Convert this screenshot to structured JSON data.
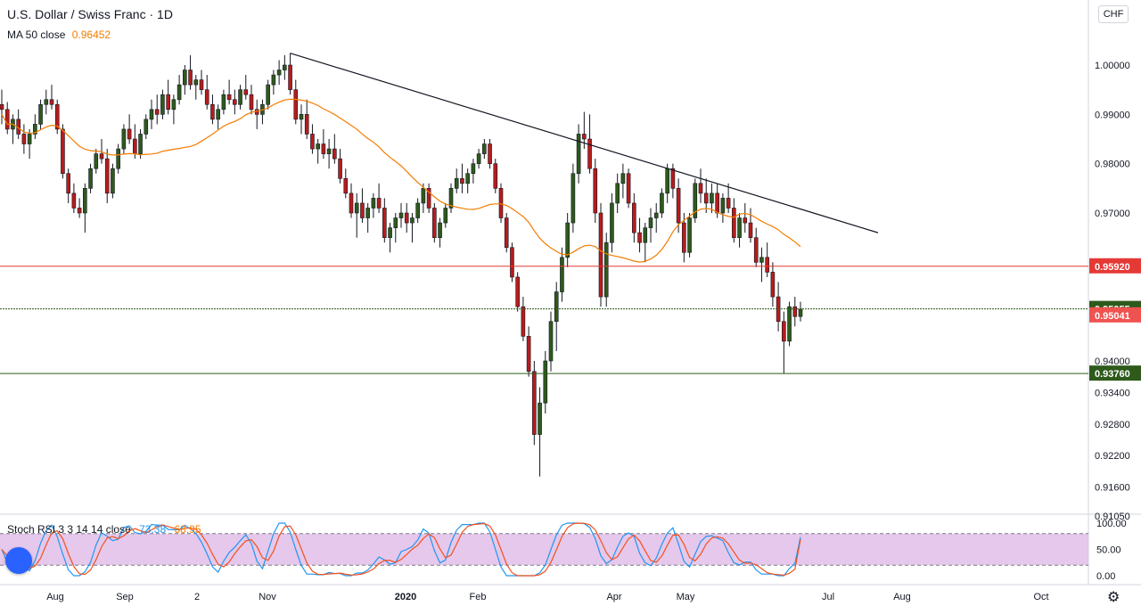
{
  "title": "U.S. Dollar / Swiss Franc · 1D",
  "indicator": {
    "label": "MA 50 close",
    "value": "0.96452"
  },
  "currency": "CHF",
  "price_labels": [
    {
      "value": "0.95920",
      "color": "#e53935",
      "text_color": "#ffffff"
    },
    {
      "value": "0.95055",
      "color": "#2e5a1c",
      "text_color": "#ffffff"
    },
    {
      "value": "0.95041",
      "color": "#ef5350",
      "text_color": "#ffffff"
    },
    {
      "value": "0.93760",
      "color": "#2e5a1c",
      "text_color": "#ffffff"
    }
  ],
  "rsi": {
    "label": "Stoch RSI 3 3 14 14 close",
    "k": "73.38",
    "d": "68.95"
  },
  "chart_data": {
    "type": "candlestick",
    "symbol": "USDCHF",
    "timeframe": "1D",
    "y_axis_ticks": [
      "1.00000",
      "0.99000",
      "0.98000",
      "0.97000",
      "0.94000",
      "0.93400",
      "0.92800",
      "0.92200",
      "0.91600",
      "0.91050"
    ],
    "x_axis_ticks": [
      "Aug",
      "Sep",
      "2",
      "Nov",
      "2020",
      "Feb",
      "Apr",
      "May",
      "Jul",
      "Aug",
      "Oct"
    ],
    "ylim": [
      0.9105,
      1.005
    ],
    "horizontal_levels": [
      {
        "value": 0.9592,
        "color": "#e53935"
      },
      {
        "value": 0.95055,
        "color": "#2e5a1c",
        "style": "dotted"
      },
      {
        "value": 0.9376,
        "color": "#2e5a1c"
      }
    ],
    "trendline": {
      "from": {
        "x": "2019-11-21",
        "y": 1.0024
      },
      "to": {
        "x": "2020-06-24",
        "y": 0.966
      }
    },
    "ma50_last": 0.96452,
    "rsi_panel": {
      "ylim": [
        0,
        100
      ],
      "ticks": [
        "100.00",
        "50.00",
        "0.00"
      ],
      "band": [
        20,
        80
      ],
      "k_last": 73.38,
      "d_last": 68.95
    },
    "candles": [
      [
        0.992,
        0.995,
        0.988,
        0.991
      ],
      [
        0.991,
        0.9925,
        0.986,
        0.987
      ],
      [
        0.987,
        0.99,
        0.984,
        0.989
      ],
      [
        0.989,
        0.991,
        0.985,
        0.986
      ],
      [
        0.986,
        0.988,
        0.982,
        0.984
      ],
      [
        0.984,
        0.987,
        0.981,
        0.986
      ],
      [
        0.986,
        0.99,
        0.985,
        0.988
      ],
      [
        0.988,
        0.993,
        0.987,
        0.992
      ],
      [
        0.992,
        0.995,
        0.99,
        0.993
      ],
      [
        0.993,
        0.996,
        0.991,
        0.992
      ],
      [
        0.992,
        0.993,
        0.986,
        0.987
      ],
      [
        0.987,
        0.988,
        0.977,
        0.978
      ],
      [
        0.978,
        0.979,
        0.972,
        0.974
      ],
      [
        0.974,
        0.976,
        0.97,
        0.971
      ],
      [
        0.971,
        0.973,
        0.969,
        0.97
      ],
      [
        0.97,
        0.976,
        0.966,
        0.975
      ],
      [
        0.975,
        0.98,
        0.974,
        0.979
      ],
      [
        0.979,
        0.983,
        0.978,
        0.982
      ],
      [
        0.982,
        0.985,
        0.98,
        0.981
      ],
      [
        0.981,
        0.983,
        0.972,
        0.974
      ],
      [
        0.974,
        0.98,
        0.973,
        0.979
      ],
      [
        0.979,
        0.984,
        0.978,
        0.983
      ],
      [
        0.983,
        0.988,
        0.982,
        0.987
      ],
      [
        0.987,
        0.99,
        0.984,
        0.985
      ],
      [
        0.985,
        0.988,
        0.981,
        0.982
      ],
      [
        0.982,
        0.987,
        0.981,
        0.986
      ],
      [
        0.986,
        0.99,
        0.985,
        0.989
      ],
      [
        0.989,
        0.993,
        0.987,
        0.991
      ],
      [
        0.991,
        0.994,
        0.988,
        0.99
      ],
      [
        0.99,
        0.995,
        0.989,
        0.994
      ],
      [
        0.994,
        0.997,
        0.99,
        0.991
      ],
      [
        0.991,
        0.994,
        0.988,
        0.993
      ],
      [
        0.993,
        0.998,
        0.992,
        0.996
      ],
      [
        0.996,
        1.0,
        0.994,
        0.999
      ],
      [
        0.999,
        1.002,
        0.995,
        0.996
      ],
      [
        0.996,
        0.998,
        0.993,
        0.997
      ],
      [
        0.997,
        0.999,
        0.994,
        0.995
      ],
      [
        0.995,
        0.998,
        0.991,
        0.992
      ],
      [
        0.992,
        0.994,
        0.988,
        0.989
      ],
      [
        0.989,
        0.992,
        0.987,
        0.991
      ],
      [
        0.991,
        0.995,
        0.99,
        0.994
      ],
      [
        0.994,
        0.997,
        0.992,
        0.993
      ],
      [
        0.993,
        0.995,
        0.99,
        0.992
      ],
      [
        0.992,
        0.996,
        0.991,
        0.995
      ],
      [
        0.995,
        0.998,
        0.993,
        0.994
      ],
      [
        0.994,
        0.996,
        0.99,
        0.991
      ],
      [
        0.991,
        0.993,
        0.987,
        0.99
      ],
      [
        0.99,
        0.993,
        0.988,
        0.992
      ],
      [
        0.992,
        0.997,
        0.991,
        0.996
      ],
      [
        0.996,
        0.999,
        0.994,
        0.998
      ],
      [
        0.998,
        1.001,
        0.996,
        0.999
      ],
      [
        0.999,
        1.002,
        0.997,
        1.0
      ],
      [
        1.0,
        1.0024,
        0.994,
        0.995
      ],
      [
        0.995,
        0.997,
        0.988,
        0.989
      ],
      [
        0.989,
        0.992,
        0.986,
        0.99
      ],
      [
        0.99,
        0.993,
        0.985,
        0.986
      ],
      [
        0.986,
        0.988,
        0.982,
        0.983
      ],
      [
        0.983,
        0.985,
        0.98,
        0.984
      ],
      [
        0.984,
        0.987,
        0.981,
        0.982
      ],
      [
        0.982,
        0.985,
        0.979,
        0.983
      ],
      [
        0.983,
        0.986,
        0.98,
        0.981
      ],
      [
        0.981,
        0.983,
        0.976,
        0.977
      ],
      [
        0.977,
        0.979,
        0.973,
        0.974
      ],
      [
        0.974,
        0.976,
        0.969,
        0.97
      ],
      [
        0.97,
        0.974,
        0.965,
        0.972
      ],
      [
        0.972,
        0.975,
        0.968,
        0.969
      ],
      [
        0.969,
        0.972,
        0.966,
        0.971
      ],
      [
        0.971,
        0.974,
        0.969,
        0.973
      ],
      [
        0.973,
        0.976,
        0.97,
        0.971
      ],
      [
        0.971,
        0.973,
        0.964,
        0.965
      ],
      [
        0.965,
        0.968,
        0.962,
        0.967
      ],
      [
        0.967,
        0.97,
        0.964,
        0.969
      ],
      [
        0.969,
        0.972,
        0.967,
        0.97
      ],
      [
        0.97,
        0.972,
        0.966,
        0.968
      ],
      [
        0.968,
        0.97,
        0.964,
        0.969
      ],
      [
        0.969,
        0.973,
        0.968,
        0.972
      ],
      [
        0.972,
        0.976,
        0.97,
        0.975
      ],
      [
        0.975,
        0.976,
        0.97,
        0.971
      ],
      [
        0.971,
        0.972,
        0.964,
        0.965
      ],
      [
        0.965,
        0.969,
        0.963,
        0.968
      ],
      [
        0.968,
        0.972,
        0.967,
        0.971
      ],
      [
        0.971,
        0.976,
        0.97,
        0.975
      ],
      [
        0.975,
        0.979,
        0.974,
        0.977
      ],
      [
        0.977,
        0.98,
        0.974,
        0.976
      ],
      [
        0.976,
        0.979,
        0.974,
        0.978
      ],
      [
        0.978,
        0.981,
        0.976,
        0.98
      ],
      [
        0.98,
        0.983,
        0.979,
        0.982
      ],
      [
        0.982,
        0.985,
        0.981,
        0.984
      ],
      [
        0.984,
        0.985,
        0.979,
        0.98
      ],
      [
        0.98,
        0.981,
        0.974,
        0.975
      ],
      [
        0.975,
        0.976,
        0.968,
        0.969
      ],
      [
        0.969,
        0.97,
        0.962,
        0.963
      ],
      [
        0.963,
        0.964,
        0.956,
        0.957
      ],
      [
        0.957,
        0.958,
        0.95,
        0.951
      ],
      [
        0.951,
        0.953,
        0.944,
        0.945
      ],
      [
        0.945,
        0.947,
        0.937,
        0.938
      ],
      [
        0.938,
        0.94,
        0.924,
        0.926
      ],
      [
        0.926,
        0.935,
        0.918,
        0.932
      ],
      [
        0.932,
        0.942,
        0.93,
        0.94
      ],
      [
        0.94,
        0.95,
        0.938,
        0.948
      ],
      [
        0.948,
        0.956,
        0.942,
        0.954
      ],
      [
        0.954,
        0.963,
        0.952,
        0.961
      ],
      [
        0.961,
        0.97,
        0.959,
        0.968
      ],
      [
        0.968,
        0.98,
        0.966,
        0.978
      ],
      [
        0.978,
        0.988,
        0.976,
        0.986
      ],
      [
        0.986,
        0.9905,
        0.983,
        0.985
      ],
      [
        0.985,
        0.99,
        0.978,
        0.979
      ],
      [
        0.979,
        0.981,
        0.968,
        0.97
      ],
      [
        0.97,
        0.972,
        0.951,
        0.953
      ],
      [
        0.953,
        0.966,
        0.951,
        0.964
      ],
      [
        0.964,
        0.974,
        0.962,
        0.972
      ],
      [
        0.972,
        0.978,
        0.97,
        0.976
      ],
      [
        0.976,
        0.98,
        0.973,
        0.978
      ],
      [
        0.978,
        0.979,
        0.971,
        0.972
      ],
      [
        0.972,
        0.974,
        0.964,
        0.966
      ],
      [
        0.966,
        0.969,
        0.962,
        0.964
      ],
      [
        0.964,
        0.968,
        0.96,
        0.967
      ],
      [
        0.967,
        0.971,
        0.964,
        0.969
      ],
      [
        0.969,
        0.972,
        0.966,
        0.97
      ],
      [
        0.97,
        0.975,
        0.969,
        0.974
      ],
      [
        0.974,
        0.98,
        0.972,
        0.979
      ],
      [
        0.979,
        0.98,
        0.973,
        0.975
      ],
      [
        0.975,
        0.977,
        0.966,
        0.968
      ],
      [
        0.968,
        0.97,
        0.96,
        0.962
      ],
      [
        0.962,
        0.97,
        0.961,
        0.969
      ],
      [
        0.969,
        0.977,
        0.968,
        0.976
      ],
      [
        0.976,
        0.979,
        0.972,
        0.974
      ],
      [
        0.974,
        0.977,
        0.97,
        0.972
      ],
      [
        0.972,
        0.976,
        0.97,
        0.974
      ],
      [
        0.974,
        0.976,
        0.969,
        0.97
      ],
      [
        0.97,
        0.974,
        0.968,
        0.973
      ],
      [
        0.973,
        0.976,
        0.97,
        0.971
      ],
      [
        0.971,
        0.973,
        0.964,
        0.965
      ],
      [
        0.965,
        0.97,
        0.963,
        0.969
      ],
      [
        0.969,
        0.972,
        0.966,
        0.968
      ],
      [
        0.968,
        0.971,
        0.964,
        0.965
      ],
      [
        0.965,
        0.967,
        0.959,
        0.96
      ],
      [
        0.96,
        0.963,
        0.956,
        0.961
      ],
      [
        0.961,
        0.964,
        0.957,
        0.958
      ],
      [
        0.958,
        0.96,
        0.951,
        0.953
      ],
      [
        0.953,
        0.956,
        0.946,
        0.948
      ],
      [
        0.948,
        0.95,
        0.9376,
        0.944
      ],
      [
        0.944,
        0.952,
        0.943,
        0.951
      ],
      [
        0.951,
        0.953,
        0.947,
        0.949
      ],
      [
        0.949,
        0.952,
        0.948,
        0.9505
      ]
    ]
  }
}
